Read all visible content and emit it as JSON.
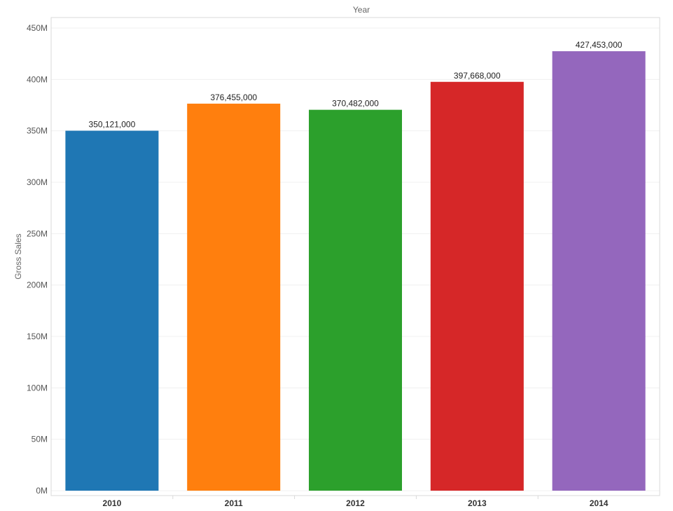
{
  "chart_data": {
    "type": "bar",
    "title": "",
    "xlabel": "Year",
    "ylabel": "Gross Sales",
    "categories": [
      "2010",
      "2011",
      "2012",
      "2013",
      "2014"
    ],
    "values": [
      350121000,
      376455000,
      370482000,
      397668000,
      427453000
    ],
    "data_labels": [
      "350,121,000",
      "376,455,000",
      "370,482,000",
      "397,668,000",
      "427,453,000"
    ],
    "colors": [
      "#1f77b4",
      "#ff7f0e",
      "#2ca02c",
      "#d62728",
      "#9467bd"
    ],
    "ylim": [
      0,
      460000000
    ],
    "yticks": [
      0,
      50000000,
      100000000,
      150000000,
      200000000,
      250000000,
      300000000,
      350000000,
      400000000,
      450000000
    ],
    "ytick_labels": [
      "0M",
      "50M",
      "100M",
      "150M",
      "200M",
      "250M",
      "300M",
      "350M",
      "400M",
      "450M"
    ],
    "grid": false,
    "xlabel_position": "top"
  }
}
